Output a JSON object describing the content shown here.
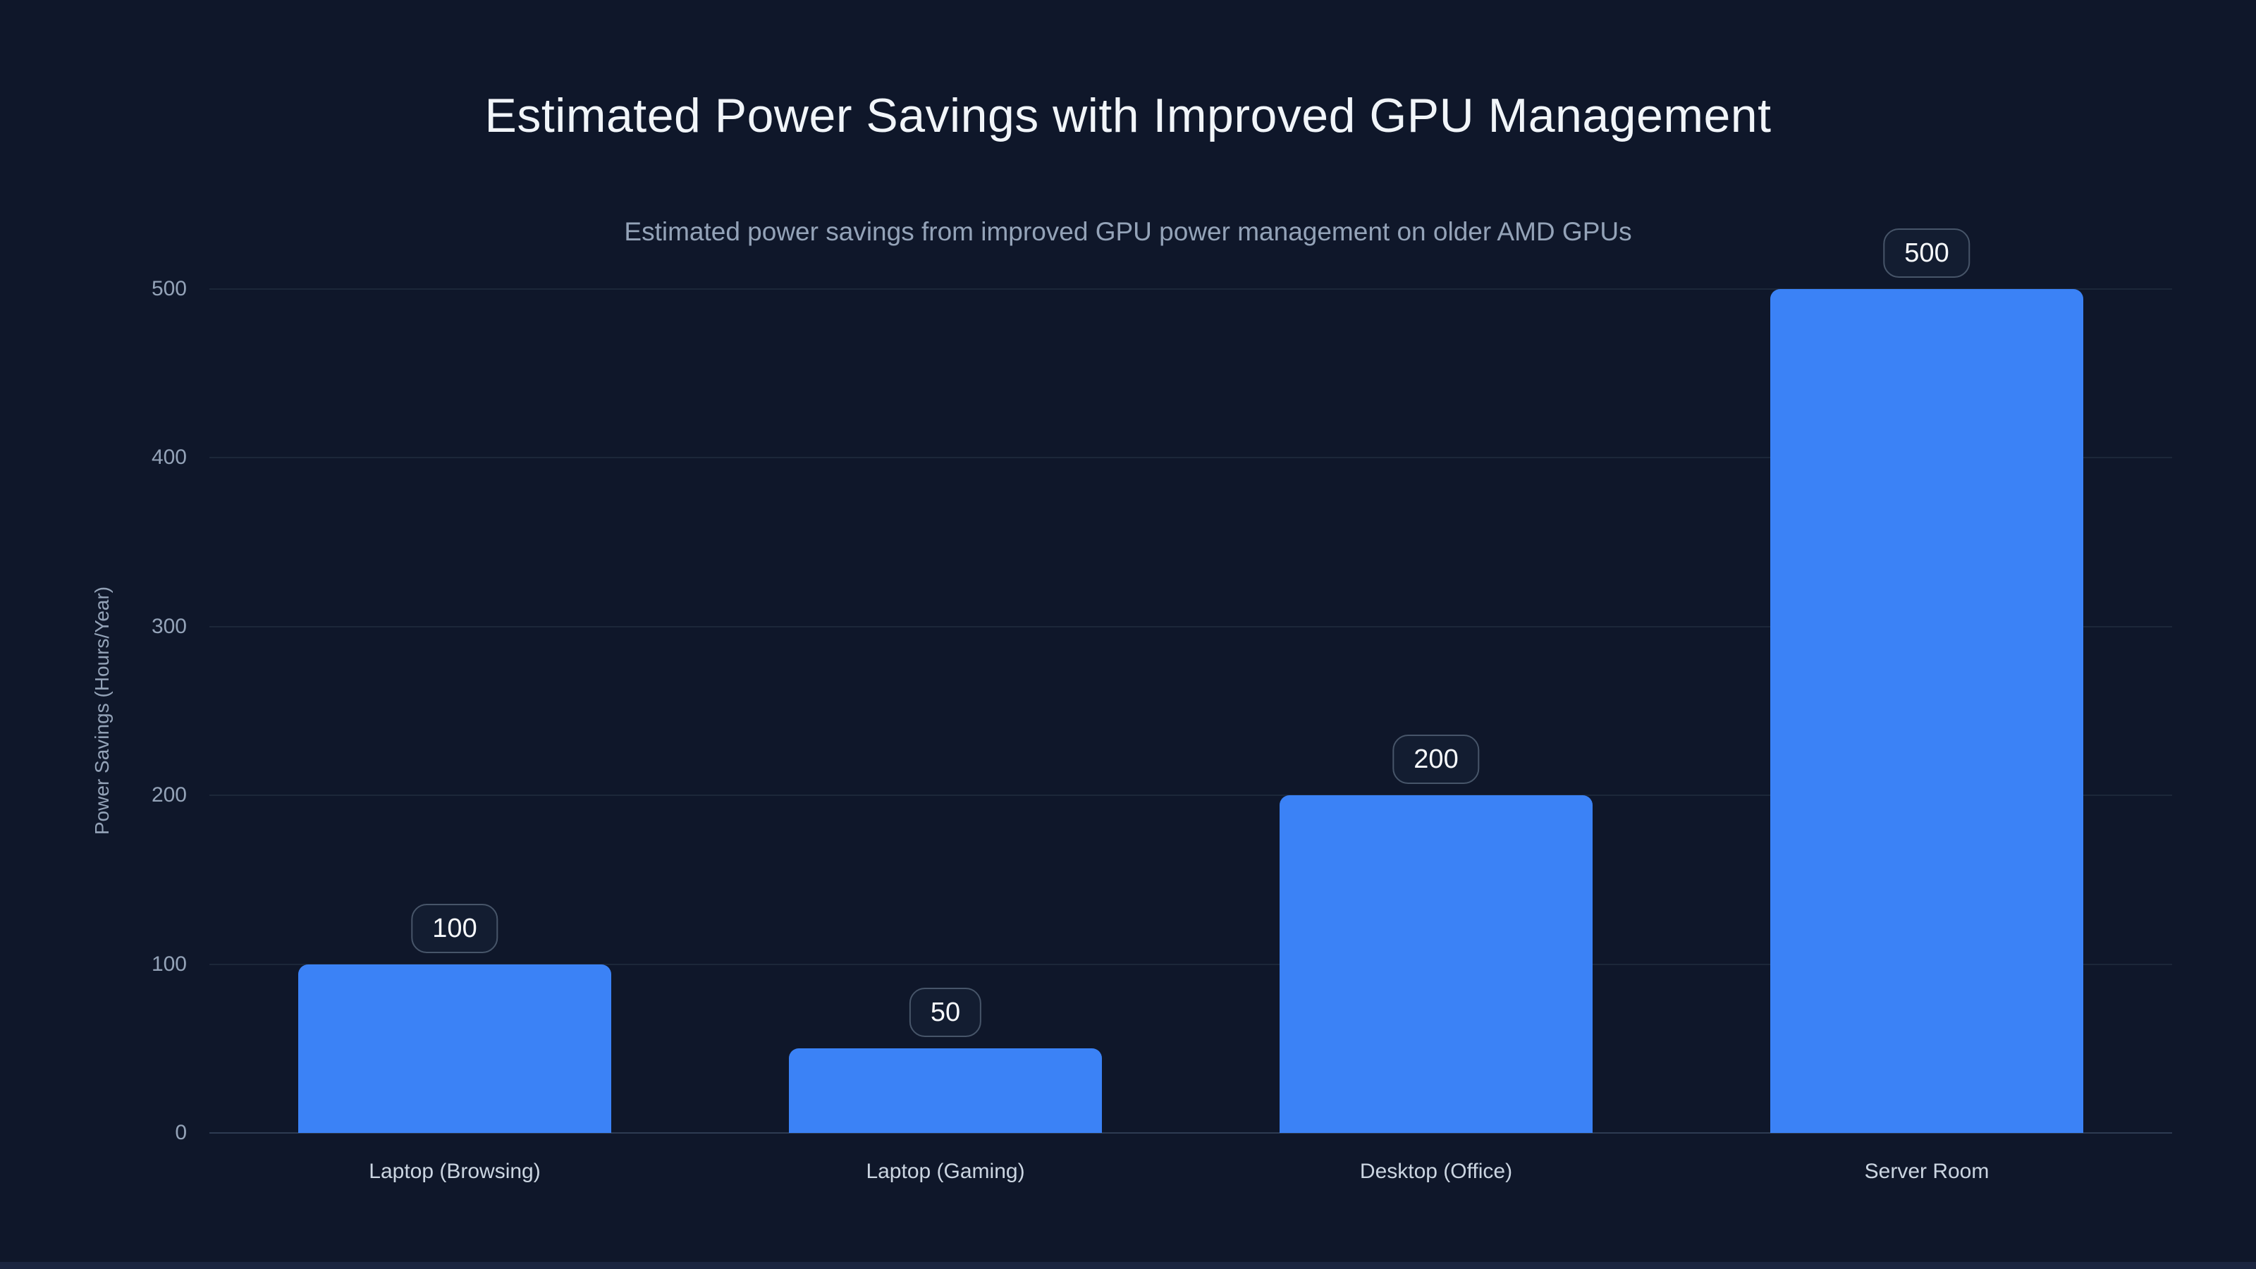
{
  "chart_data": {
    "type": "bar",
    "title": "Estimated Power Savings with Improved GPU Management",
    "subtitle": "Estimated power savings from improved GPU power management on older AMD GPUs",
    "categories": [
      "Laptop (Browsing)",
      "Laptop (Gaming)",
      "Desktop (Office)",
      "Server Room"
    ],
    "values": [
      100,
      50,
      200,
      500
    ],
    "value_labels": [
      "100",
      "50",
      "200",
      "500"
    ],
    "ylabel": "Power Savings (Hours/Year)",
    "xlabel": "",
    "ylim": [
      0,
      500
    ],
    "yticks": [
      0,
      100,
      200,
      300,
      400,
      500
    ],
    "grid": true,
    "legend": false,
    "colors": {
      "background": "#0f172a",
      "bar": "#3b82f6",
      "gridline": "#1c2739",
      "axis_line": "#2e3b52",
      "tick_text": "#94a3b8",
      "category_text": "#cbd5e1",
      "title_text": "#f1f5f9",
      "subtitle_text": "#94a3b8",
      "badge_border": "#475569",
      "badge_text": "#f8fafc",
      "badge_bg": "#131d31",
      "window_edge": "#1b2540"
    }
  }
}
